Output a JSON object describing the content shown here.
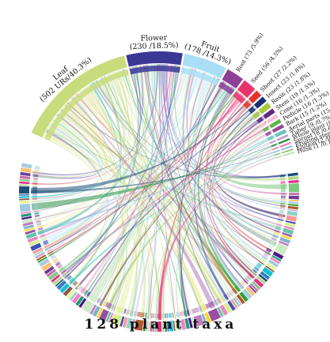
{
  "chart_data": {
    "type": "chord",
    "bottom_label": "128 plant taxa",
    "organs": [
      {
        "label": "Leaf (502 URs/40.3%)",
        "count": 502,
        "percent": 40.3,
        "color": "#c8dc7c"
      },
      {
        "label": "Flower (230 /18.5%)",
        "count": 230,
        "percent": 18.5,
        "color": "#3b3795"
      },
      {
        "label": "Fruit (178 /14.3%)",
        "count": 178,
        "percent": 14.3,
        "color": "#a9dff5"
      },
      {
        "label": "Root (73 /5.9%)",
        "count": 73,
        "percent": 5.9,
        "color": "#8f3f98"
      },
      {
        "label": "Seed (56 /4.5%)",
        "count": 56,
        "percent": 4.5,
        "color": "#e6356b"
      },
      {
        "label": "Shoot (27 /2.2%)",
        "count": 27,
        "percent": 2.2,
        "color": "#e5342b"
      },
      {
        "label": "Insect (23 /1.8%)",
        "count": 23,
        "percent": 1.8,
        "color": "#1b2f6e"
      },
      {
        "label": "Resin (23 /1.8%)",
        "count": 23,
        "percent": 1.8,
        "color": "#a8c93a"
      },
      {
        "label": "Stem (19 /1.5%)",
        "count": 19,
        "percent": 1.5,
        "color": "#5f2a83"
      },
      {
        "label": "Cone (16 /1.3%)",
        "count": 16,
        "percent": 1.3,
        "color": "#f6c3d6"
      },
      {
        "label": "Pedicle (16 /1.3%)",
        "count": 16,
        "percent": 1.3,
        "color": "#5ab54a"
      },
      {
        "label": "Bark (15 /1.2%)",
        "count": 15,
        "percent": 1.2,
        "color": "#96479a"
      },
      {
        "label": "Aerial parts (15 /1.2%)",
        "count": 15,
        "percent": 1.2,
        "color": "#69c3c0"
      },
      {
        "label": "Tuber (9 /0.7%)",
        "count": 9,
        "percent": 0.7,
        "color": "#c79bc8"
      },
      {
        "label": "Whole plant (8 /0.6%)",
        "count": 8,
        "percent": 0.6,
        "color": "#2a8f4b"
      },
      {
        "label": "Sprout (8 /0.6%)",
        "count": 8,
        "percent": 0.6,
        "color": "#e889b5"
      },
      {
        "label": "Fruiting stem (4 /0.3%)",
        "count": 4,
        "percent": 0.3,
        "color": "#72b8e6"
      },
      {
        "label": "Elution (2 /0.2%)",
        "count": 2,
        "percent": 0.2,
        "color": "#8fbb65"
      },
      {
        "label": "Husk (1 /0.1%)",
        "count": 1,
        "percent": 0.1,
        "color": "#b9d9a6"
      }
    ],
    "taxa_count": 128,
    "taxa_palette": [
      "#1f4e79",
      "#b2d98a",
      "#e7298a",
      "#7fc97f",
      "#c46ea8",
      "#6a3d9a",
      "#fdbf6f",
      "#a6cee3",
      "#33a02c",
      "#b15928",
      "#cab2d6",
      "#8dd3c7",
      "#fb9a99",
      "#3f51b5",
      "#d9ef8b",
      "#e78ac3",
      "#66c2a5",
      "#984ea3",
      "#ffd92f",
      "#80b1d3",
      "#bc80bd",
      "#ccebc5",
      "#4a148c",
      "#1b9e77",
      "#f781bf",
      "#9ecae1",
      "#e6f598",
      "#8c564b",
      "#17becf",
      "#2c7fb8"
    ]
  }
}
